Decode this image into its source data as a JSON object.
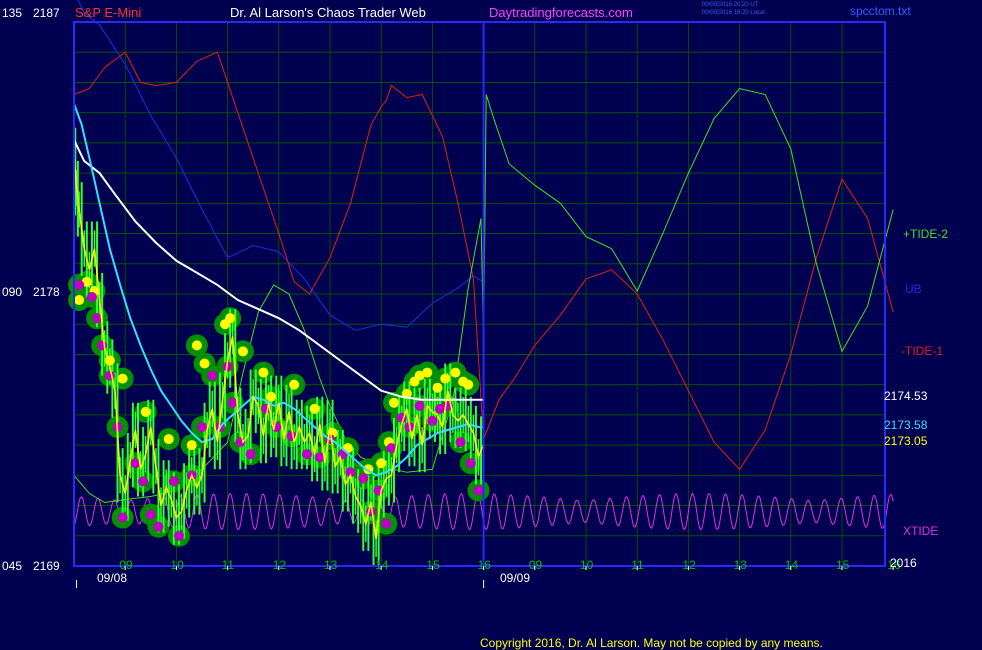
{
  "header": {
    "instrument": "S&P E-Mini",
    "site_title": "Dr. Al Larson's Chaos Trader Web",
    "site_url": "Daytradingforecasts.com",
    "stamp_line1": "00/00/2016 20:20 UT",
    "stamp_line2": "00/00/2016 16:20 Local",
    "file_name": "spcctom.txt"
  },
  "footer": {
    "copyright": "Copyright 2016, Dr. Al Larson. May not be copied by any means."
  },
  "colors": {
    "background": "#000050",
    "frame": "#2828ff",
    "grid": "#005000",
    "price_bar": "#30ff30",
    "ma_white": "#ffffff",
    "ma_cyan": "#30e0ff",
    "ma_yellow": "#ffff00",
    "tide_plus": "#40e020",
    "tide_minus": "#e02010",
    "ub": "#1830e0",
    "xtide": "#e030e0",
    "marker_ring": "#009000",
    "marker_yellow": "#ffff00",
    "marker_magenta": "#c000c0",
    "instrument_text": "#ff3030",
    "site_text": "#ffffff",
    "url_text": "#ff40ff",
    "stamp_text": "#3060ff"
  },
  "chart_data": {
    "type": "line",
    "title": "S&P E-Mini",
    "y_left_codes": [
      "135",
      "090",
      "045"
    ],
    "y_prices": [
      "2187",
      "2178",
      "2169"
    ],
    "ylim": [
      2169,
      2187
    ],
    "x_tick_labels": [
      "09",
      "10",
      "11",
      "12",
      "13",
      "14",
      "15",
      "16",
      "09",
      "10",
      "11",
      "12",
      "13",
      "14",
      "15",
      "16"
    ],
    "date_labels": [
      "09/08",
      "09/09"
    ],
    "year_label": "2016",
    "current_day_end_index": 7,
    "right_labels": {
      "tide_plus": "+TIDE-2",
      "ub": "UB",
      "tide_minus": "-TIDE-1",
      "xtide": "XTIDE",
      "value_white": "2174.53",
      "value_cyan": "2173.58",
      "value_yellow": "2173.05"
    },
    "series": [
      {
        "key": "white",
        "x": [
          8.0,
          8.2,
          8.5,
          8.8,
          9.2,
          9.6,
          10.0,
          10.4,
          10.8,
          11.2,
          11.6,
          12.0,
          12.4,
          12.8,
          13.2,
          13.6,
          14.0,
          14.4,
          14.8,
          15.2,
          15.6,
          16.0
        ],
        "values": [
          2183.1,
          2182.4,
          2182.0,
          2181.3,
          2180.4,
          2179.7,
          2179.1,
          2178.7,
          2178.3,
          2177.8,
          2177.5,
          2177.2,
          2176.8,
          2176.3,
          2175.8,
          2175.3,
          2174.8,
          2174.6,
          2174.5,
          2174.5,
          2174.5,
          2174.5
        ]
      },
      {
        "key": "cyan",
        "x": [
          8.0,
          8.15,
          8.3,
          8.5,
          8.7,
          8.9,
          9.1,
          9.3,
          9.5,
          9.7,
          9.9,
          10.1,
          10.3,
          10.5,
          10.7,
          10.9,
          11.1,
          11.3,
          11.5,
          11.7,
          11.9,
          12.1,
          12.3,
          12.5,
          12.7,
          12.9,
          13.1,
          13.3,
          13.5,
          13.7,
          13.9,
          14.1,
          14.3,
          14.5,
          14.7,
          14.9,
          15.1,
          15.3,
          15.5,
          15.7,
          15.9,
          16.0
        ],
        "values": [
          2184.3,
          2183.6,
          2182.5,
          2181.0,
          2179.5,
          2178.3,
          2177.2,
          2176.3,
          2175.5,
          2174.8,
          2174.3,
          2173.8,
          2173.4,
          2173.1,
          2173.2,
          2173.7,
          2174.0,
          2174.3,
          2174.6,
          2174.5,
          2174.3,
          2174.4,
          2174.2,
          2173.9,
          2173.6,
          2173.3,
          2173.1,
          2172.8,
          2172.5,
          2172.2,
          2172.0,
          2172.1,
          2172.3,
          2172.6,
          2173.0,
          2173.2,
          2173.4,
          2173.5,
          2173.6,
          2173.7,
          2173.6,
          2173.58
        ]
      },
      {
        "key": "yellow",
        "x": [
          8.0,
          8.05,
          8.1,
          8.2,
          8.3,
          8.4,
          8.5,
          8.6,
          8.7,
          8.8,
          8.9,
          9.0,
          9.1,
          9.2,
          9.3,
          9.4,
          9.5,
          9.6,
          9.7,
          9.8,
          9.9,
          10.0,
          10.1,
          10.2,
          10.3,
          10.4,
          10.5,
          10.6,
          10.7,
          10.8,
          10.9,
          11.0,
          11.1,
          11.2,
          11.3,
          11.4,
          11.5,
          11.6,
          11.7,
          11.8,
          11.9,
          12.0,
          12.1,
          12.2,
          12.3,
          12.4,
          12.5,
          12.6,
          12.7,
          12.8,
          12.9,
          13.0,
          13.1,
          13.2,
          13.3,
          13.4,
          13.5,
          13.6,
          13.7,
          13.8,
          13.9,
          14.0,
          14.1,
          14.2,
          14.3,
          14.4,
          14.5,
          14.6,
          14.7,
          14.8,
          14.9,
          15.0,
          15.1,
          15.2,
          15.3,
          15.4,
          15.5,
          15.6,
          15.7,
          15.8,
          15.9,
          16.0
        ],
        "values": [
          2182.6,
          2181.5,
          2180.8,
          2179.5,
          2178.8,
          2179.5,
          2177.8,
          2176.2,
          2175.6,
          2174.8,
          2172.0,
          2171.4,
          2172.5,
          2173.5,
          2172.2,
          2172.7,
          2173.6,
          2172.3,
          2171.0,
          2171.6,
          2171.2,
          2170.6,
          2170.8,
          2171.5,
          2172.0,
          2171.6,
          2172.0,
          2173.5,
          2174.2,
          2173.1,
          2174.5,
          2175.8,
          2176.6,
          2174.0,
          2173.1,
          2173.3,
          2174.6,
          2174.3,
          2173.3,
          2174.4,
          2173.5,
          2174.4,
          2173.2,
          2174.1,
          2173.1,
          2173.6,
          2173.1,
          2173.4,
          2172.7,
          2173.7,
          2172.4,
          2173.6,
          2172.3,
          2172.6,
          2171.7,
          2172.0,
          2171.3,
          2171.0,
          2170.4,
          2171.1,
          2169.9,
          2171.5,
          2171.9,
          2172.0,
          2173.0,
          2173.7,
          2174.2,
          2173.2,
          2174.0,
          2173.0,
          2174.3,
          2174.1,
          2174.0,
          2173.6,
          2174.8,
          2174.0,
          2173.8,
          2174.0,
          2173.7,
          2173.4,
          2172.6,
          2173.05
        ]
      },
      {
        "key": "tide_plus",
        "x": [
          8.0,
          8.3,
          8.6,
          9.0,
          9.5,
          10.0,
          10.5,
          11.0,
          11.3,
          11.6,
          11.9,
          12.2,
          12.5,
          12.8,
          13.0,
          13.3,
          13.6,
          14.0,
          14.5,
          15.0,
          15.4,
          15.7,
          15.95,
          16.0,
          16.05,
          16.2,
          16.5,
          17.0,
          17.5,
          18.0,
          18.5,
          19.0,
          19.5,
          20.0,
          20.5,
          21.0,
          21.5,
          22.0,
          22.5,
          23.0,
          23.5,
          24.0
        ],
        "values": [
          2172.0,
          2171.4,
          2171.1,
          2171.2,
          2171.3,
          2171.5,
          2172.2,
          2173.1,
          2175.4,
          2177.4,
          2178.3,
          2178.0,
          2176.8,
          2175.2,
          2174.3,
          2173.2,
          2172.6,
          2172.3,
          2172.1,
          2172.2,
          2174.5,
          2178.2,
          2180.5,
          2176.4,
          2184.6,
          2183.8,
          2182.3,
          2181.6,
          2181.0,
          2179.9,
          2179.5,
          2178.1,
          2180.0,
          2182.0,
          2183.8,
          2184.8,
          2184.6,
          2182.8,
          2179.0,
          2176.1,
          2177.6,
          2180.8
        ]
      },
      {
        "key": "tide_minus",
        "x": [
          8.0,
          8.3,
          8.6,
          9.0,
          9.3,
          9.6,
          10.0,
          10.4,
          10.8,
          11.2,
          11.6,
          12.0,
          12.3,
          12.6,
          13.0,
          13.4,
          13.8,
          14.0,
          14.1,
          14.2,
          14.5,
          14.8,
          15.2,
          15.5,
          15.8,
          16.0,
          16.3,
          16.6,
          17.0,
          17.5,
          18.0,
          18.5,
          19.0,
          19.5,
          20.0,
          20.5,
          21.0,
          21.5,
          22.0,
          22.5,
          23.0,
          23.5,
          24.0
        ],
        "values": [
          2184.6,
          2184.8,
          2185.5,
          2186.0,
          2185.0,
          2184.9,
          2185.0,
          2185.7,
          2186.0,
          2184.0,
          2182.0,
          2180.0,
          2178.4,
          2178.0,
          2179.2,
          2181.0,
          2183.6,
          2184.2,
          2184.4,
          2184.9,
          2184.5,
          2184.6,
          2183.2,
          2181.0,
          2178.5,
          2173.2,
          2174.5,
          2175.2,
          2176.3,
          2177.3,
          2178.5,
          2178.8,
          2178.0,
          2176.5,
          2174.8,
          2173.1,
          2172.2,
          2173.5,
          2176.0,
          2179.2,
          2181.8,
          2180.5,
          2177.4
        ]
      },
      {
        "key": "ub",
        "x": [
          8.0,
          8.2,
          8.5,
          9.0,
          9.5,
          10.0,
          10.5,
          11.0,
          11.5,
          12.0,
          12.5,
          13.0,
          13.5,
          14.0,
          14.5,
          15.0,
          15.5,
          15.8,
          16.0
        ],
        "values": [
          2188.0,
          2187.3,
          2186.9,
          2185.6,
          2183.9,
          2182.5,
          2180.8,
          2179.2,
          2179.6,
          2179.4,
          2178.5,
          2177.3,
          2176.8,
          2177.0,
          2176.9,
          2177.7,
          2178.2,
          2178.6,
          2178.4
        ]
      }
    ],
    "xtide": {
      "x_start": 8.0,
      "x_end": 24.0,
      "baseline": 2170.8,
      "amplitude": 0.6,
      "cycles_per_hour": 3.1
    },
    "markers": {
      "yellow_dots": [
        {
          "x": 8.1,
          "y": 2177.8
        },
        {
          "x": 8.25,
          "y": 2178.4
        },
        {
          "x": 8.4,
          "y": 2178.1
        },
        {
          "x": 8.7,
          "y": 2175.8
        },
        {
          "x": 8.95,
          "y": 2175.2
        },
        {
          "x": 9.4,
          "y": 2174.1
        },
        {
          "x": 9.85,
          "y": 2173.2
        },
        {
          "x": 10.3,
          "y": 2173.0
        },
        {
          "x": 10.4,
          "y": 2176.3
        },
        {
          "x": 10.55,
          "y": 2175.7
        },
        {
          "x": 10.95,
          "y": 2177.0
        },
        {
          "x": 11.05,
          "y": 2177.2
        },
        {
          "x": 11.3,
          "y": 2176.1
        },
        {
          "x": 11.7,
          "y": 2175.4
        },
        {
          "x": 11.85,
          "y": 2174.6
        },
        {
          "x": 12.3,
          "y": 2175.0
        },
        {
          "x": 12.7,
          "y": 2174.2
        },
        {
          "x": 13.05,
          "y": 2173.4
        },
        {
          "x": 13.35,
          "y": 2172.9
        },
        {
          "x": 13.75,
          "y": 2172.2
        },
        {
          "x": 14.0,
          "y": 2172.4
        },
        {
          "x": 14.15,
          "y": 2173.1
        },
        {
          "x": 14.25,
          "y": 2174.4
        },
        {
          "x": 14.5,
          "y": 2174.7
        },
        {
          "x": 14.65,
          "y": 2175.1
        },
        {
          "x": 14.75,
          "y": 2175.3
        },
        {
          "x": 14.9,
          "y": 2175.4
        },
        {
          "x": 15.1,
          "y": 2174.9
        },
        {
          "x": 15.25,
          "y": 2175.2
        },
        {
          "x": 15.45,
          "y": 2175.4
        },
        {
          "x": 15.6,
          "y": 2175.1
        },
        {
          "x": 15.7,
          "y": 2175.0
        }
      ],
      "magenta_dots": [
        {
          "x": 8.1,
          "y": 2178.3
        },
        {
          "x": 8.35,
          "y": 2177.9
        },
        {
          "x": 8.45,
          "y": 2177.2
        },
        {
          "x": 8.55,
          "y": 2176.3
        },
        {
          "x": 8.7,
          "y": 2175.3
        },
        {
          "x": 8.85,
          "y": 2173.6
        },
        {
          "x": 8.95,
          "y": 2170.6
        },
        {
          "x": 9.2,
          "y": 2172.4
        },
        {
          "x": 9.35,
          "y": 2171.8
        },
        {
          "x": 9.5,
          "y": 2170.7
        },
        {
          "x": 9.65,
          "y": 2170.3
        },
        {
          "x": 9.95,
          "y": 2171.8
        },
        {
          "x": 10.05,
          "y": 2170.0
        },
        {
          "x": 10.3,
          "y": 2172.0
        },
        {
          "x": 10.5,
          "y": 2173.6
        },
        {
          "x": 10.7,
          "y": 2175.3
        },
        {
          "x": 10.85,
          "y": 2173.6
        },
        {
          "x": 11.0,
          "y": 2175.6
        },
        {
          "x": 11.1,
          "y": 2174.4
        },
        {
          "x": 11.25,
          "y": 2173.1
        },
        {
          "x": 11.45,
          "y": 2172.7
        },
        {
          "x": 11.75,
          "y": 2174.2
        },
        {
          "x": 11.95,
          "y": 2173.6
        },
        {
          "x": 12.25,
          "y": 2173.3
        },
        {
          "x": 12.55,
          "y": 2172.7
        },
        {
          "x": 12.8,
          "y": 2172.6
        },
        {
          "x": 13.0,
          "y": 2173.2
        },
        {
          "x": 13.25,
          "y": 2172.7
        },
        {
          "x": 13.4,
          "y": 2172.1
        },
        {
          "x": 13.65,
          "y": 2171.9
        },
        {
          "x": 13.8,
          "y": 2170.8
        },
        {
          "x": 13.95,
          "y": 2171.5
        },
        {
          "x": 14.1,
          "y": 2170.4
        },
        {
          "x": 14.2,
          "y": 2172.9
        },
        {
          "x": 14.4,
          "y": 2173.9
        },
        {
          "x": 14.55,
          "y": 2173.6
        },
        {
          "x": 14.75,
          "y": 2174.3
        },
        {
          "x": 15.0,
          "y": 2173.8
        },
        {
          "x": 15.15,
          "y": 2174.2
        },
        {
          "x": 15.3,
          "y": 2174.3
        },
        {
          "x": 15.55,
          "y": 2173.1
        },
        {
          "x": 15.75,
          "y": 2172.4
        },
        {
          "x": 15.9,
          "y": 2171.5
        }
      ]
    },
    "grid": true,
    "legend": "right"
  }
}
